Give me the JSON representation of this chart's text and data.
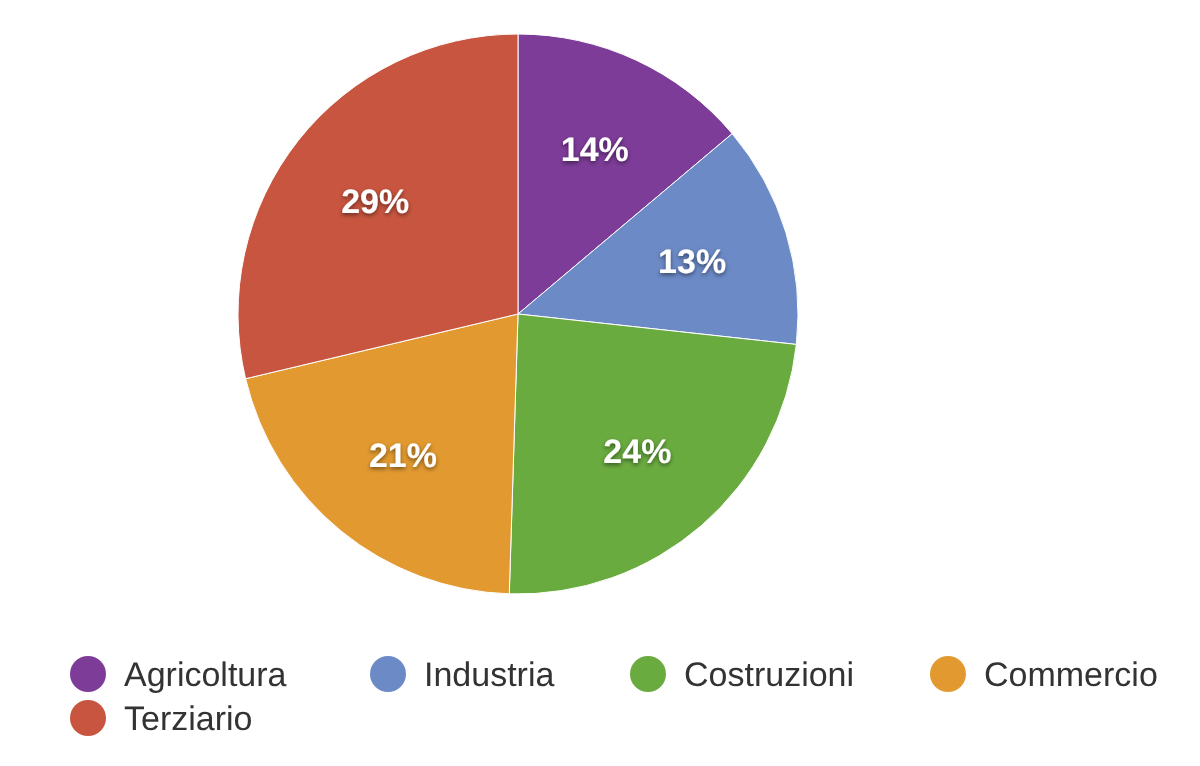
{
  "chart_data": {
    "type": "pie",
    "categories": [
      "Agricoltura",
      "Industria",
      "Costruzioni",
      "Commercio",
      "Terziario"
    ],
    "values": [
      14,
      13,
      24,
      21,
      29
    ],
    "colors": [
      "#7d3c98",
      "#6b8ac6",
      "#6aab3f",
      "#e29a30",
      "#c8553f"
    ],
    "value_labels": [
      "14%",
      "13%",
      "24%",
      "21%",
      "29%"
    ],
    "legend": "bottom"
  }
}
